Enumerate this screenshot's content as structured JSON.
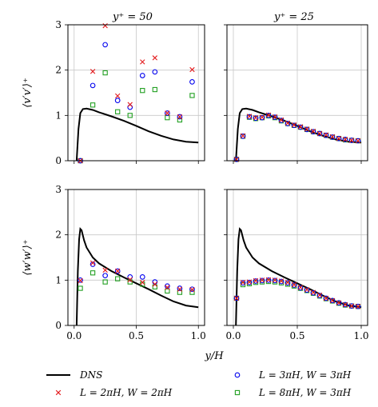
{
  "colors": {
    "dns": "#000000",
    "case_2pi": "#e31a1c",
    "case_3pi": "#0000ee",
    "case_8pi": "#22a022",
    "grid": "#c8c8c8"
  },
  "figure": {
    "col_titles": [
      "y⁺ = 50",
      "y⁺ = 25"
    ],
    "xlabel": "y/H",
    "ylabels": [
      "⟨v′v′⟩⁺",
      "⟨w′w′⟩⁺"
    ],
    "xticks": [
      "0.0",
      "0.5",
      "1.0"
    ],
    "yticks": [
      "0",
      "1",
      "2",
      "3"
    ],
    "legend": [
      {
        "key": "dns",
        "label": "DNS",
        "marker": "line"
      },
      {
        "key": "case_3pi",
        "label": "L = 3πH, W = 3πH",
        "marker": "circle"
      },
      {
        "key": "case_2pi",
        "label": "L = 2πH, W = 2πH",
        "marker": "x"
      },
      {
        "key": "case_8pi",
        "label": "L = 8πH, W = 3πH",
        "marker": "square"
      }
    ]
  },
  "chart_data": [
    {
      "type": "line",
      "panel": "top-left",
      "title": "y⁺ = 50",
      "ylabel": "⟨v′v′⟩⁺",
      "xlim": [
        -0.05,
        1.05
      ],
      "ylim": [
        0,
        3
      ],
      "grid": true,
      "dns": {
        "x": [
          0.02,
          0.035,
          0.05,
          0.07,
          0.1,
          0.15,
          0.2,
          0.3,
          0.4,
          0.5,
          0.6,
          0.7,
          0.8,
          0.9,
          1.0
        ],
        "y": [
          0.0,
          0.7,
          1.05,
          1.14,
          1.15,
          1.12,
          1.07,
          0.98,
          0.88,
          0.77,
          0.65,
          0.55,
          0.47,
          0.42,
          0.4
        ]
      },
      "series": [
        {
          "key": "case_2pi",
          "x": [
            0.05,
            0.15,
            0.25,
            0.35,
            0.45,
            0.55,
            0.65,
            0.75,
            0.85,
            0.95
          ],
          "y": [
            0.0,
            1.97,
            2.98,
            1.43,
            1.24,
            2.18,
            2.27,
            1.05,
            0.97,
            2.01
          ]
        },
        {
          "key": "case_3pi",
          "x": [
            0.05,
            0.15,
            0.25,
            0.35,
            0.45,
            0.55,
            0.65,
            0.75,
            0.85,
            0.95
          ],
          "y": [
            0.0,
            1.66,
            2.56,
            1.33,
            1.18,
            1.88,
            1.96,
            1.05,
            0.97,
            1.74
          ]
        },
        {
          "key": "case_8pi",
          "x": [
            0.05,
            0.15,
            0.25,
            0.35,
            0.45,
            0.55,
            0.65,
            0.75,
            0.85,
            0.95
          ],
          "y": [
            0.0,
            1.23,
            1.94,
            1.08,
            1.0,
            1.55,
            1.57,
            0.95,
            0.9,
            1.44
          ]
        }
      ]
    },
    {
      "type": "line",
      "panel": "top-right",
      "title": "y⁺ = 25",
      "xlim": [
        -0.05,
        1.05
      ],
      "ylim": [
        0,
        3
      ],
      "grid": true,
      "dns": {
        "x": [
          0.02,
          0.035,
          0.05,
          0.07,
          0.1,
          0.15,
          0.2,
          0.3,
          0.4,
          0.5,
          0.6,
          0.7,
          0.8,
          0.9,
          1.0
        ],
        "y": [
          0.0,
          0.7,
          1.05,
          1.14,
          1.15,
          1.12,
          1.07,
          0.98,
          0.88,
          0.77,
          0.65,
          0.55,
          0.47,
          0.42,
          0.4
        ]
      },
      "series": [
        {
          "key": "case_2pi",
          "x": [
            0.025,
            0.075,
            0.125,
            0.175,
            0.225,
            0.275,
            0.325,
            0.375,
            0.425,
            0.475,
            0.525,
            0.575,
            0.625,
            0.675,
            0.725,
            0.775,
            0.825,
            0.875,
            0.925,
            0.975
          ],
          "y": [
            0.03,
            0.55,
            0.98,
            0.95,
            0.96,
            1.01,
            0.97,
            0.9,
            0.83,
            0.79,
            0.75,
            0.7,
            0.65,
            0.6,
            0.57,
            0.53,
            0.49,
            0.47,
            0.45,
            0.44
          ]
        },
        {
          "key": "case_3pi",
          "x": [
            0.025,
            0.075,
            0.125,
            0.175,
            0.225,
            0.275,
            0.325,
            0.375,
            0.425,
            0.475,
            0.525,
            0.575,
            0.625,
            0.675,
            0.725,
            0.775,
            0.825,
            0.875,
            0.925,
            0.975
          ],
          "y": [
            0.03,
            0.54,
            0.97,
            0.94,
            0.95,
            1.0,
            0.96,
            0.89,
            0.82,
            0.78,
            0.74,
            0.69,
            0.64,
            0.6,
            0.56,
            0.52,
            0.49,
            0.47,
            0.45,
            0.44
          ]
        },
        {
          "key": "case_8pi",
          "x": [
            0.025,
            0.075,
            0.125,
            0.175,
            0.225,
            0.275,
            0.325,
            0.375,
            0.425,
            0.475,
            0.525,
            0.575,
            0.625,
            0.675,
            0.725,
            0.775,
            0.825,
            0.875,
            0.925,
            0.975
          ],
          "y": [
            0.03,
            0.54,
            0.96,
            0.93,
            0.95,
            0.99,
            0.95,
            0.88,
            0.82,
            0.78,
            0.74,
            0.69,
            0.64,
            0.6,
            0.56,
            0.52,
            0.49,
            0.46,
            0.45,
            0.44
          ]
        }
      ]
    },
    {
      "type": "line",
      "panel": "bottom-left",
      "ylabel": "⟨w′w′⟩⁺",
      "xlabel": "y/H",
      "xlim": [
        -0.05,
        1.05
      ],
      "ylim": [
        0,
        3
      ],
      "grid": true,
      "dns": {
        "x": [
          0.02,
          0.03,
          0.04,
          0.05,
          0.06,
          0.08,
          0.1,
          0.15,
          0.2,
          0.3,
          0.4,
          0.5,
          0.6,
          0.7,
          0.8,
          0.9,
          1.0
        ],
        "y": [
          0.0,
          1.2,
          1.9,
          2.13,
          2.1,
          1.88,
          1.72,
          1.5,
          1.37,
          1.2,
          1.06,
          0.93,
          0.8,
          0.66,
          0.53,
          0.44,
          0.4
        ]
      },
      "series": [
        {
          "key": "case_2pi",
          "x": [
            0.05,
            0.15,
            0.25,
            0.35,
            0.45,
            0.55,
            0.65,
            0.75,
            0.85,
            0.95
          ],
          "y": [
            0.99,
            1.38,
            1.22,
            1.2,
            1.01,
            0.95,
            0.91,
            0.84,
            0.8,
            0.79
          ]
        },
        {
          "key": "case_3pi",
          "x": [
            0.05,
            0.15,
            0.25,
            0.35,
            0.45,
            0.55,
            0.65,
            0.75,
            0.85,
            0.95
          ],
          "y": [
            1.0,
            1.35,
            1.1,
            1.2,
            1.07,
            1.07,
            0.96,
            0.87,
            0.82,
            0.8
          ]
        },
        {
          "key": "case_8pi",
          "x": [
            0.05,
            0.15,
            0.25,
            0.35,
            0.45,
            0.55,
            0.65,
            0.75,
            0.85,
            0.95
          ],
          "y": [
            0.82,
            1.16,
            0.96,
            1.03,
            0.96,
            0.91,
            0.85,
            0.76,
            0.73,
            0.73
          ]
        }
      ]
    },
    {
      "type": "line",
      "panel": "bottom-right",
      "xlabel": "y/H",
      "xlim": [
        -0.05,
        1.05
      ],
      "ylim": [
        0,
        3
      ],
      "grid": true,
      "dns": {
        "x": [
          0.02,
          0.03,
          0.04,
          0.05,
          0.06,
          0.08,
          0.1,
          0.15,
          0.2,
          0.3,
          0.4,
          0.5,
          0.6,
          0.7,
          0.8,
          0.9,
          1.0
        ],
        "y": [
          0.0,
          1.2,
          1.9,
          2.13,
          2.1,
          1.88,
          1.72,
          1.5,
          1.37,
          1.2,
          1.06,
          0.93,
          0.8,
          0.66,
          0.53,
          0.44,
          0.4
        ]
      },
      "series": [
        {
          "key": "case_2pi",
          "x": [
            0.025,
            0.075,
            0.125,
            0.175,
            0.225,
            0.275,
            0.325,
            0.375,
            0.425,
            0.475,
            0.525,
            0.575,
            0.625,
            0.675,
            0.725,
            0.775,
            0.825,
            0.875,
            0.925,
            0.975
          ],
          "y": [
            0.6,
            0.95,
            0.96,
            0.99,
            1.0,
            1.01,
            1.0,
            0.98,
            0.95,
            0.9,
            0.84,
            0.79,
            0.73,
            0.67,
            0.6,
            0.55,
            0.5,
            0.46,
            0.43,
            0.42
          ]
        },
        {
          "key": "case_3pi",
          "x": [
            0.025,
            0.075,
            0.125,
            0.175,
            0.225,
            0.275,
            0.325,
            0.375,
            0.425,
            0.475,
            0.525,
            0.575,
            0.625,
            0.675,
            0.725,
            0.775,
            0.825,
            0.875,
            0.925,
            0.975
          ],
          "y": [
            0.6,
            0.94,
            0.95,
            0.98,
            0.99,
            1.0,
            0.99,
            0.97,
            0.94,
            0.89,
            0.83,
            0.78,
            0.72,
            0.66,
            0.6,
            0.55,
            0.5,
            0.46,
            0.43,
            0.42
          ]
        },
        {
          "key": "case_8pi",
          "x": [
            0.025,
            0.075,
            0.125,
            0.175,
            0.225,
            0.275,
            0.325,
            0.375,
            0.425,
            0.475,
            0.525,
            0.575,
            0.625,
            0.675,
            0.725,
            0.775,
            0.825,
            0.875,
            0.925,
            0.975
          ],
          "y": [
            0.6,
            0.9,
            0.92,
            0.95,
            0.96,
            0.97,
            0.96,
            0.94,
            0.91,
            0.87,
            0.82,
            0.77,
            0.71,
            0.65,
            0.59,
            0.54,
            0.49,
            0.45,
            0.43,
            0.42
          ]
        }
      ]
    }
  ]
}
